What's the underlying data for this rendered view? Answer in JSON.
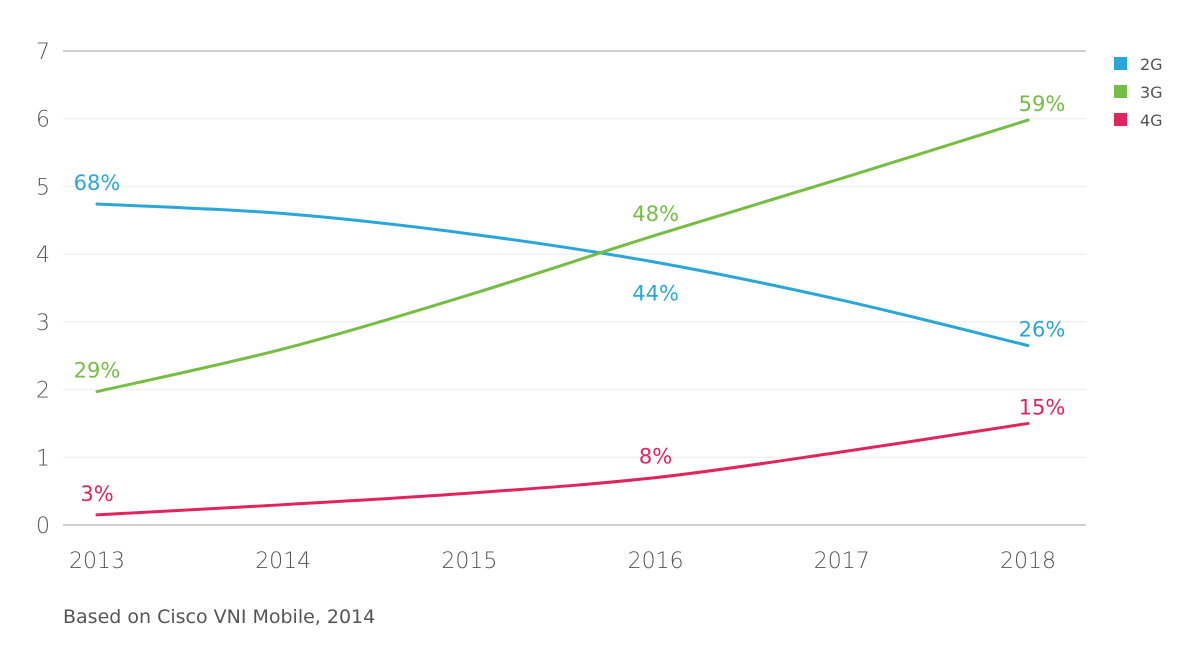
{
  "chart_data": {
    "type": "line",
    "x": [
      "2013",
      "2014",
      "2015",
      "2016",
      "2017",
      "2018"
    ],
    "ylim": [
      0,
      7
    ],
    "yticks": [
      "0",
      "1",
      "2",
      "3",
      "4",
      "5",
      "6",
      "7"
    ],
    "grid": true,
    "legend_position": "top-right",
    "series": [
      {
        "name": "2G",
        "color": "#2aa6d9",
        "values": [
          4.74,
          4.6,
          4.3,
          3.88,
          3.32,
          2.65
        ],
        "labels": [
          {
            "index": 0,
            "text": "68%",
            "pos": "above"
          },
          {
            "index": 3,
            "text": "44%",
            "pos": "below"
          },
          {
            "index": 5,
            "text": "26%",
            "pos": "above-right"
          }
        ]
      },
      {
        "name": "3G",
        "color": "#75bd43",
        "values": [
          1.97,
          2.6,
          3.4,
          4.28,
          5.12,
          5.98
        ],
        "labels": [
          {
            "index": 0,
            "text": "29%",
            "pos": "above"
          },
          {
            "index": 3,
            "text": "48%",
            "pos": "above"
          },
          {
            "index": 5,
            "text": "59%",
            "pos": "above-right"
          }
        ]
      },
      {
        "name": "4G",
        "color": "#e0245e",
        "values": [
          0.15,
          0.3,
          0.47,
          0.7,
          1.08,
          1.5
        ],
        "labels": [
          {
            "index": 0,
            "text": "3%",
            "pos": "above"
          },
          {
            "index": 3,
            "text": "8%",
            "pos": "above"
          },
          {
            "index": 5,
            "text": "15%",
            "pos": "above-right"
          }
        ]
      }
    ]
  },
  "source_note": "Based on Cisco VNI Mobile, 2014"
}
